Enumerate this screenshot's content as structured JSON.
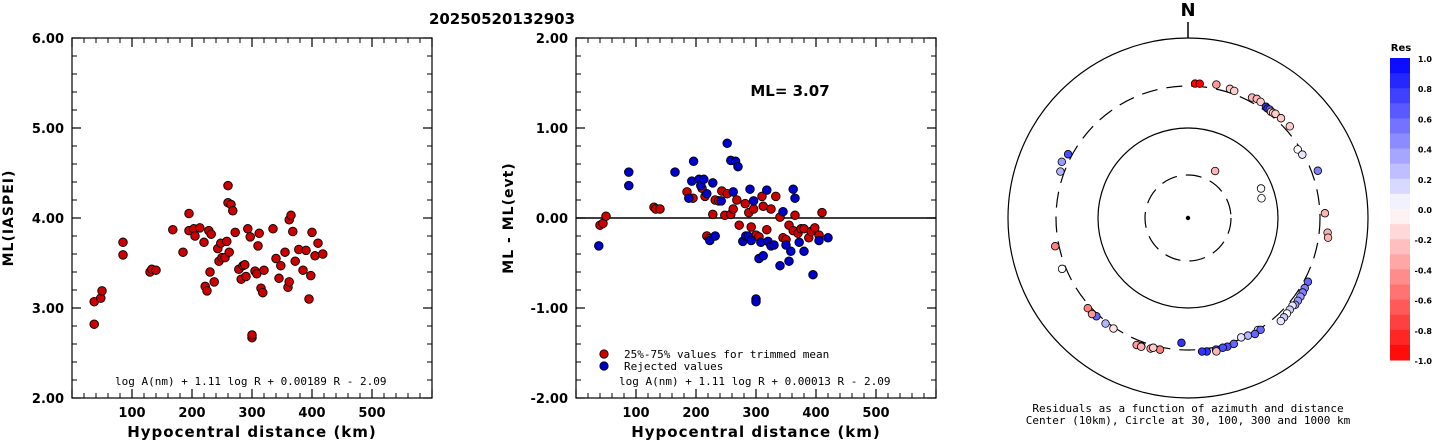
{
  "title": "20250520132903",
  "chart_data": [
    {
      "type": "scatter",
      "xlabel": "Hypocentral distance (km)",
      "ylabel": "ML(IASPEI)",
      "xlim": [
        0,
        600
      ],
      "ylim": [
        2.0,
        6.0
      ],
      "xticks": [
        "100",
        "200",
        "300",
        "400",
        "500"
      ],
      "yticks": [
        "2.00",
        "3.00",
        "4.00",
        "5.00",
        "6.00"
      ],
      "annotation": "log A(nm) + 1.11 log R + 0.00189 R - 2.09",
      "series": [
        {
          "color": "#cc0000",
          "points": [
            [
              37,
              2.82
            ],
            [
              37,
              3.07
            ],
            [
              48,
              3.11
            ],
            [
              50,
              3.19
            ],
            [
              85,
              3.59
            ],
            [
              85,
              3.73
            ],
            [
              130,
              3.4
            ],
            [
              133,
              3.43
            ],
            [
              140,
              3.42
            ],
            [
              168,
              3.87
            ],
            [
              185,
              3.62
            ],
            [
              195,
              4.05
            ],
            [
              195,
              3.86
            ],
            [
              203,
              3.88
            ],
            [
              205,
              3.8
            ],
            [
              213,
              3.89
            ],
            [
              220,
              3.73
            ],
            [
              222,
              3.24
            ],
            [
              225,
              3.19
            ],
            [
              228,
              3.86
            ],
            [
              230,
              3.4
            ],
            [
              232,
              3.82
            ],
            [
              237,
              3.29
            ],
            [
              243,
              3.66
            ],
            [
              245,
              3.52
            ],
            [
              248,
              3.72
            ],
            [
              250,
              3.56
            ],
            [
              255,
              3.56
            ],
            [
              258,
              3.74
            ],
            [
              260,
              4.36
            ],
            [
              260,
              4.17
            ],
            [
              262,
              3.62
            ],
            [
              265,
              4.15
            ],
            [
              268,
              4.08
            ],
            [
              272,
              3.84
            ],
            [
              278,
              3.43
            ],
            [
              282,
              3.32
            ],
            [
              285,
              3.47
            ],
            [
              288,
              3.48
            ],
            [
              290,
              3.35
            ],
            [
              293,
              3.88
            ],
            [
              297,
              3.79
            ],
            [
              300,
              2.67
            ],
            [
              300,
              2.7
            ],
            [
              305,
              3.41
            ],
            [
              308,
              3.38
            ],
            [
              310,
              3.69
            ],
            [
              312,
              3.83
            ],
            [
              315,
              3.22
            ],
            [
              318,
              3.17
            ],
            [
              320,
              3.42
            ],
            [
              335,
              3.88
            ],
            [
              340,
              3.55
            ],
            [
              345,
              3.33
            ],
            [
              348,
              3.47
            ],
            [
              355,
              3.62
            ],
            [
              360,
              3.23
            ],
            [
              362,
              3.98
            ],
            [
              362,
              3.29
            ],
            [
              365,
              4.03
            ],
            [
              368,
              3.85
            ],
            [
              372,
              3.52
            ],
            [
              378,
              3.65
            ],
            [
              385,
              3.42
            ],
            [
              390,
              3.64
            ],
            [
              395,
              3.1
            ],
            [
              398,
              3.36
            ],
            [
              400,
              3.84
            ],
            [
              405,
              3.58
            ],
            [
              410,
              3.72
            ],
            [
              418,
              3.6
            ]
          ]
        }
      ]
    },
    {
      "type": "scatter",
      "xlabel": "Hypocentral distance (km)",
      "ylabel": "ML - ML(evt)",
      "xlim": [
        0,
        600
      ],
      "ylim": [
        -2.0,
        2.0
      ],
      "xticks": [
        "100",
        "200",
        "300",
        "400",
        "500"
      ],
      "yticks": [
        "-2.00",
        "-1.00",
        "0.00",
        "1.00",
        "2.00"
      ],
      "reference_line": 0.0,
      "annotation_ml": "ML= 3.07",
      "annotation": "log A(nm) + 1.11 log R + 0.00013 R - 2.09",
      "legend": [
        "25%-75% values for trimmed mean",
        "Rejected values"
      ],
      "series": [
        {
          "name": "25%-75% values for trimmed mean",
          "color": "#cc0000",
          "points": [
            [
              40,
              -0.08
            ],
            [
              45,
              -0.06
            ],
            [
              50,
              0.02
            ],
            [
              130,
              0.12
            ],
            [
              133,
              0.1
            ],
            [
              140,
              0.1
            ],
            [
              185,
              0.29
            ],
            [
              195,
              0.22
            ],
            [
              210,
              0.33
            ],
            [
              215,
              0.24
            ],
            [
              218,
              -0.2
            ],
            [
              222,
              -0.23
            ],
            [
              228,
              0.04
            ],
            [
              232,
              0.2
            ],
            [
              238,
              0.19
            ],
            [
              243,
              0.3
            ],
            [
              248,
              0.03
            ],
            [
              252,
              0.27
            ],
            [
              258,
              0.04
            ],
            [
              262,
              0.1
            ],
            [
              268,
              0.2
            ],
            [
              272,
              -0.08
            ],
            [
              282,
              0.16
            ],
            [
              288,
              0.06
            ],
            [
              292,
              -0.1
            ],
            [
              296,
              0.1
            ],
            [
              300,
              -0.19
            ],
            [
              305,
              -0.21
            ],
            [
              310,
              0.24
            ],
            [
              312,
              0.13
            ],
            [
              318,
              -0.13
            ],
            [
              325,
              0.1
            ],
            [
              333,
              0.24
            ],
            [
              340,
              0.01
            ],
            [
              345,
              -0.22
            ],
            [
              350,
              -0.24
            ],
            [
              355,
              -0.08
            ],
            [
              362,
              -0.14
            ],
            [
              365,
              0.03
            ],
            [
              370,
              -0.17
            ],
            [
              375,
              -0.12
            ],
            [
              380,
              -0.12
            ],
            [
              388,
              -0.22
            ],
            [
              392,
              -0.15
            ],
            [
              398,
              -0.11
            ],
            [
              405,
              -0.19
            ],
            [
              410,
              0.06
            ]
          ]
        },
        {
          "name": "Rejected values",
          "color": "#0000cc",
          "points": [
            [
              38,
              -0.31
            ],
            [
              88,
              0.51
            ],
            [
              88,
              0.36
            ],
            [
              165,
              0.51
            ],
            [
              188,
              0.22
            ],
            [
              193,
              0.41
            ],
            [
              196,
              0.63
            ],
            [
              205,
              0.43
            ],
            [
              208,
              0.36
            ],
            [
              213,
              0.43
            ],
            [
              218,
              0.27
            ],
            [
              223,
              -0.25
            ],
            [
              228,
              0.39
            ],
            [
              232,
              -0.2
            ],
            [
              242,
              0.19
            ],
            [
              252,
              0.83
            ],
            [
              258,
              0.64
            ],
            [
              262,
              0.29
            ],
            [
              266,
              0.63
            ],
            [
              270,
              0.57
            ],
            [
              278,
              -0.26
            ],
            [
              283,
              -0.2
            ],
            [
              287,
              -0.2
            ],
            [
              290,
              0.32
            ],
            [
              292,
              -0.25
            ],
            [
              296,
              0.19
            ],
            [
              300,
              -0.9
            ],
            [
              300,
              -0.93
            ],
            [
              305,
              -0.45
            ],
            [
              308,
              -0.27
            ],
            [
              312,
              -0.42
            ],
            [
              318,
              0.31
            ],
            [
              320,
              -0.26
            ],
            [
              325,
              -0.31
            ],
            [
              330,
              -0.3
            ],
            [
              340,
              -0.53
            ],
            [
              345,
              0.07
            ],
            [
              350,
              -0.3
            ],
            [
              355,
              -0.48
            ],
            [
              358,
              -0.37
            ],
            [
              362,
              0.32
            ],
            [
              365,
              0.22
            ],
            [
              372,
              -0.27
            ],
            [
              380,
              -0.37
            ],
            [
              395,
              -0.63
            ],
            [
              405,
              -0.25
            ],
            [
              420,
              -0.22
            ]
          ]
        }
      ]
    },
    {
      "type": "polar_scatter",
      "north_label": "N",
      "caption_line1": "Residuals as a function of azimuth and distance",
      "caption_line2": "Center (10km), Circle at 30, 100, 300 and 1000 km",
      "rings_km": [
        30,
        100,
        300,
        1000
      ],
      "colorbar_title": "Res",
      "colorbar_ticks": [
        "1.0",
        "0.8",
        "0.6",
        "0.4",
        "0.2",
        "0.0",
        "-0.2",
        "-0.4",
        "-0.6",
        "-0.8",
        "-1.0"
      ],
      "stations_azimuth_deg_distance_km_residual": [
        [
          30,
          40,
          -0.3
        ],
        [
          75,
          70,
          0.0
        ],
        [
          68,
          75,
          0.0
        ],
        [
          3,
          320,
          -1.0
        ],
        [
          5,
          322,
          -1.0
        ],
        [
          12,
          335,
          -0.4
        ],
        [
          18,
          330,
          -0.2
        ],
        [
          20,
          325,
          -0.2
        ],
        [
          28,
          335,
          -0.3
        ],
        [
          30,
          345,
          -0.3
        ],
        [
          32,
          340,
          -0.2
        ],
        [
          35,
          330,
          0.8
        ],
        [
          36,
          326,
          0.8
        ],
        [
          37,
          330,
          0.6
        ],
        [
          38,
          322,
          -0.2
        ],
        [
          39,
          326,
          -0.2
        ],
        [
          40,
          332,
          -0.2
        ],
        [
          43,
          335,
          -0.2
        ],
        [
          48,
          340,
          -0.2
        ],
        [
          58,
          280,
          0.0
        ],
        [
          61,
          290,
          0.1
        ],
        [
          70,
          350,
          0.5
        ],
        [
          88,
          340,
          -0.3
        ],
        [
          96,
          370,
          -0.3
        ],
        [
          98,
          380,
          -0.3
        ],
        [
          118,
          330,
          0.6
        ],
        [
          121,
          333,
          0.5
        ],
        [
          123,
          338,
          0.5
        ],
        [
          125,
          342,
          0.4
        ],
        [
          127,
          345,
          0.4
        ],
        [
          129,
          348,
          0.4
        ],
        [
          130,
          335,
          0.1
        ],
        [
          132,
          340,
          0.2
        ],
        [
          134,
          345,
          0.0
        ],
        [
          136,
          350,
          0.2
        ],
        [
          138,
          355,
          0.1
        ],
        [
          148,
          300,
          0.2
        ],
        [
          153,
          300,
          0.3
        ],
        [
          156,
          290,
          0.1
        ],
        [
          147,
          310,
          0.6
        ],
        [
          150,
          315,
          0.6
        ],
        [
          160,
          315,
          0.6
        ],
        [
          163,
          320,
          0.7
        ],
        [
          165,
          318,
          0.7
        ],
        [
          168,
          320,
          0.7
        ],
        [
          172,
          322,
          0.8
        ],
        [
          174,
          318,
          0.8
        ],
        [
          168,
          335,
          -0.3
        ],
        [
          183,
          250,
          0.8
        ],
        [
          196,
          330,
          -0.4
        ],
        [
          200,
          335,
          -0.5
        ],
        [
          202,
          340,
          -0.4
        ],
        [
          192,
          320,
          -0.5
        ],
        [
          195,
          318,
          -0.2
        ],
        [
          200,
          340,
          -0.3
        ],
        [
          218,
          315,
          0.3
        ],
        [
          223,
          318,
          0.6
        ],
        [
          214,
          310,
          -0.1
        ],
        [
          248,
          330,
          0.0
        ],
        [
          258,
          330,
          -0.5
        ],
        [
          290,
          330,
          0.3
        ],
        [
          294,
          350,
          0.4
        ],
        [
          298,
          330,
          0.7
        ],
        [
          228,
          322,
          -0.5
        ],
        [
          225,
          330,
          -0.4
        ]
      ]
    }
  ]
}
